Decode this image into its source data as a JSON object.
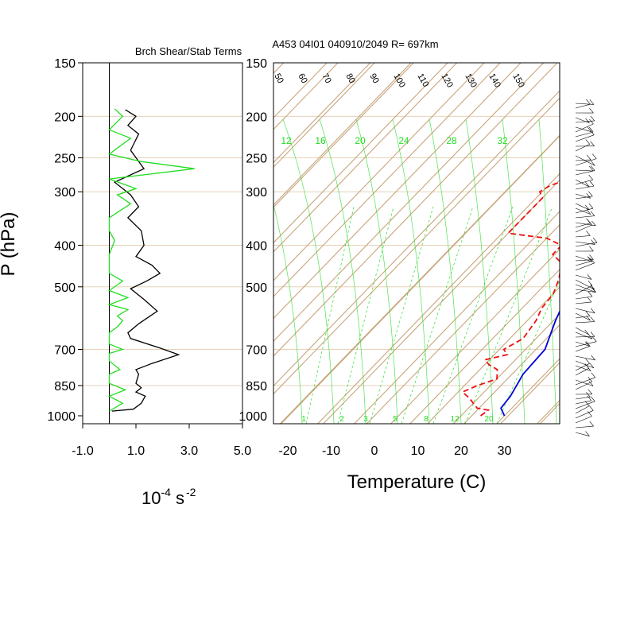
{
  "header": {
    "left_title": "Brch Shear/Stab Terms",
    "right_title": "A453 04I01 040910/2049 R= 697km"
  },
  "axes": {
    "p_label": "P (hPa)",
    "temp_label": "Temperature (C)",
    "units_label_base": "10",
    "units_label_exp": "-4",
    "units_label_s": "s",
    "units_label_s_exp": "-2"
  },
  "colors": {
    "background_lines": "#c8a67c",
    "dry_adiabat": "#c8a67c",
    "mixing_ratio": "#22dd22",
    "temperature": "#0000dd",
    "dewpoint": "#ee1111",
    "shear": "#000000",
    "stability": "#22dd22"
  },
  "chart_data": [
    {
      "type": "line",
      "name": "brch-shear-stab-panel",
      "title": "Brch Shear/Stab Terms",
      "xlim": [
        -1.0,
        5.0
      ],
      "x_ticks": [
        "-1.0",
        "1.0",
        "3.0",
        "5.0"
      ],
      "x_tick_values": [
        -1.0,
        1.0,
        3.0,
        5.0
      ],
      "ylabel": "P (hPa)",
      "y_log": true,
      "ylim": [
        1000,
        150
      ],
      "p_levels": [
        "150",
        "200",
        "250",
        "300",
        "400",
        "500",
        "700",
        "850",
        "1000"
      ],
      "p_level_values": [
        150,
        200,
        250,
        300,
        400,
        500,
        700,
        850,
        1000
      ],
      "series": [
        {
          "color": "#000000",
          "points": [
            [
              0.1,
              975
            ],
            [
              0.9,
              965
            ],
            [
              1.2,
              935
            ],
            [
              1.35,
              900
            ],
            [
              1.0,
              880
            ],
            [
              1.2,
              860
            ],
            [
              1.0,
              840
            ],
            [
              1.1,
              800
            ],
            [
              1.0,
              780
            ],
            [
              1.6,
              755
            ],
            [
              2.6,
              720
            ],
            [
              1.9,
              695
            ],
            [
              0.8,
              660
            ],
            [
              0.7,
              640
            ],
            [
              1.1,
              610
            ],
            [
              1.8,
              570
            ],
            [
              1.3,
              535
            ],
            [
              0.8,
              505
            ],
            [
              1.4,
              485
            ],
            [
              1.9,
              465
            ],
            [
              1.6,
              445
            ],
            [
              1.0,
              425
            ],
            [
              1.3,
              400
            ],
            [
              1.2,
              370
            ],
            [
              0.7,
              345
            ],
            [
              1.1,
              325
            ],
            [
              0.8,
              305
            ],
            [
              0.2,
              285
            ],
            [
              1.3,
              265
            ],
            [
              0.8,
              240
            ],
            [
              1.1,
              220
            ],
            [
              0.7,
              210
            ],
            [
              1.0,
              200
            ],
            [
              0.6,
              193
            ]
          ]
        },
        {
          "color": "#22dd22",
          "points": [
            [
              0.0,
              975
            ],
            [
              0.5,
              935
            ],
            [
              0.0,
              900
            ],
            [
              0.6,
              870
            ],
            [
              0.0,
              840
            ],
            [
              0.0,
              800
            ],
            [
              0.4,
              780
            ],
            [
              0.0,
              745
            ],
            [
              0.0,
              715
            ],
            [
              0.5,
              700
            ],
            [
              0.0,
              680
            ],
            [
              0.0,
              640
            ],
            [
              0.3,
              620
            ],
            [
              0.5,
              600
            ],
            [
              0.3,
              585
            ],
            [
              0.7,
              565
            ],
            [
              0.0,
              550
            ],
            [
              0.7,
              530
            ],
            [
              0.0,
              510
            ],
            [
              0.5,
              485
            ],
            [
              0.0,
              465
            ],
            [
              0.0,
              420
            ],
            [
              0.2,
              390
            ],
            [
              0.0,
              370
            ],
            [
              0.0,
              345
            ],
            [
              0.8,
              320
            ],
            [
              0.3,
              305
            ],
            [
              1.0,
              295
            ],
            [
              0.0,
              280
            ],
            [
              3.2,
              265
            ],
            [
              1.2,
              255
            ],
            [
              0.0,
              245
            ],
            [
              0.8,
              225
            ],
            [
              0.0,
              215
            ],
            [
              0.5,
              200
            ],
            [
              0.2,
              192
            ]
          ]
        }
      ]
    },
    {
      "type": "line",
      "name": "skewt-log-p",
      "title": "A453 04I01 040910/2049 R= 697km",
      "xlabel": "Temperature (C)",
      "xlim": [
        -23,
        43
      ],
      "x_ticks": [
        "-20",
        "-10",
        "0",
        "10",
        "20",
        "30"
      ],
      "x_tick_values": [
        -20,
        -10,
        0,
        10,
        20,
        30
      ],
      "y_log": true,
      "ylim": [
        1000,
        150
      ],
      "p_levels": [
        "150",
        "200",
        "250",
        "300",
        "400",
        "500",
        "700",
        "850",
        "1000"
      ],
      "p_level_values": [
        150,
        200,
        250,
        300,
        400,
        500,
        700,
        850,
        1000
      ],
      "skewed_isotherm_labels": [
        "50",
        "60",
        "70",
        "80",
        "90",
        "100",
        "110",
        "120",
        "130",
        "140",
        "150"
      ],
      "mixing_ratio_labels_top": [
        "12",
        "16",
        "20",
        "24",
        "28",
        "32"
      ],
      "mixing_ratio_labels_bottom": [
        "1",
        "2",
        "3",
        "5",
        "8",
        "12",
        "20"
      ],
      "series": [
        {
          "color": "#0000dd",
          "points": [
            [
              30.0,
              1000
            ],
            [
              27.5,
              960
            ],
            [
              27.0,
              900
            ],
            [
              25.0,
              800
            ],
            [
              24.5,
              700
            ],
            [
              20.5,
              600
            ],
            [
              16.5,
              500
            ],
            [
              14.0,
              440
            ],
            [
              12.0,
              400
            ],
            [
              9.0,
              350
            ],
            [
              6.0,
              300
            ],
            [
              3.5,
              270
            ],
            [
              2.0,
              250
            ],
            [
              0.5,
              230
            ],
            [
              0.0,
              220
            ],
            [
              -2.0,
              200
            ],
            [
              -2.5,
              190
            ]
          ]
        },
        {
          "color": "#ee1111",
          "points": [
            [
              24.5,
              1000
            ],
            [
              25.0,
              970
            ],
            [
              22.0,
              960
            ],
            [
              18.0,
              910
            ],
            [
              15.0,
              880
            ],
            [
              17.0,
              850
            ],
            [
              20.0,
              820
            ],
            [
              18.0,
              780
            ],
            [
              15.0,
              760
            ],
            [
              13.0,
              740
            ],
            [
              17.0,
              720
            ],
            [
              15.0,
              700
            ],
            [
              17.0,
              660
            ],
            [
              16.0,
              600
            ],
            [
              14.5,
              560
            ],
            [
              14.0,
              520
            ],
            [
              12.0,
              480
            ],
            [
              9.0,
              440
            ],
            [
              5.0,
              420
            ],
            [
              5.0,
              400
            ],
            [
              0.0,
              385
            ],
            [
              -10.0,
              375
            ],
            [
              -10.0,
              350
            ],
            [
              -10.0,
              330
            ],
            [
              -10.0,
              310
            ],
            [
              -12.0,
              300
            ],
            [
              -11.0,
              290
            ],
            [
              -8.0,
              280
            ],
            [
              -6.0,
              275
            ],
            [
              -2.0,
              272
            ],
            [
              1.0,
              265
            ],
            [
              4.0,
              255
            ],
            [
              3.5,
              245
            ],
            [
              1.0,
              235
            ],
            [
              -2.0,
              225
            ],
            [
              -4.0,
              215
            ],
            [
              -6.0,
              210
            ]
          ]
        }
      ]
    }
  ]
}
